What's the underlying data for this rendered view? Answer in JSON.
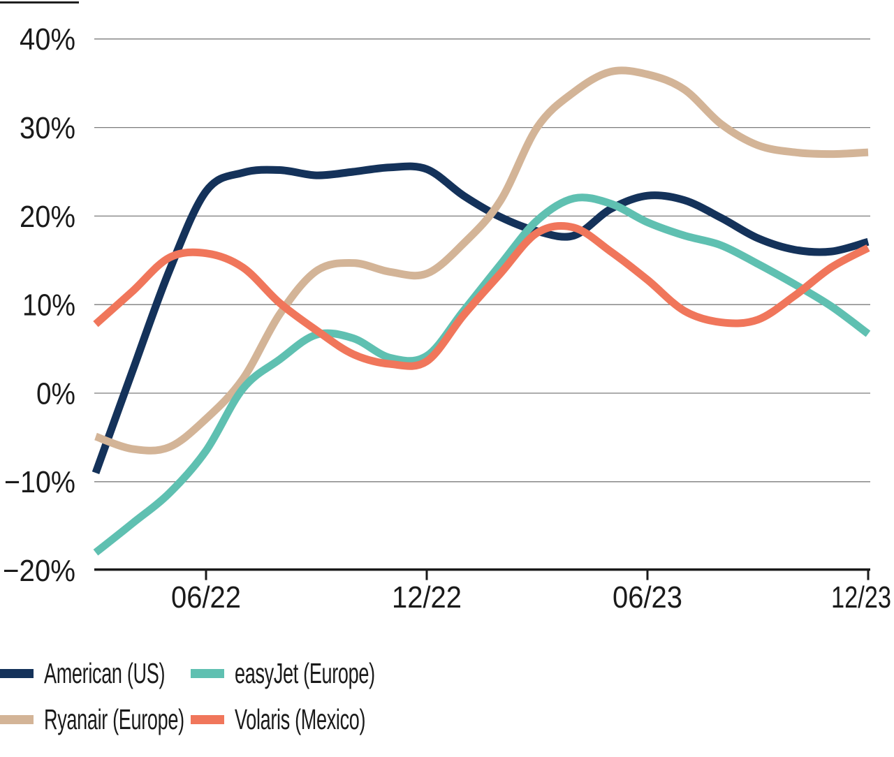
{
  "chart_data": {
    "type": "line",
    "title": "",
    "xlabel": "",
    "ylabel": "",
    "x": [
      "03/22",
      "04/22",
      "05/22",
      "06/22",
      "07/22",
      "08/22",
      "09/22",
      "10/22",
      "11/22",
      "12/22",
      "01/23",
      "02/23",
      "03/23",
      "04/23",
      "05/23",
      "06/23",
      "07/23",
      "08/23",
      "09/23",
      "10/23",
      "11/23",
      "12/23"
    ],
    "x_tick_labels": [
      "06/22",
      "12/22",
      "06/23",
      "12/23"
    ],
    "x_tick_indices": [
      3,
      9,
      15,
      21
    ],
    "y_ticks": [
      40,
      30,
      20,
      10,
      0,
      -10,
      -20
    ],
    "y_tick_labels": [
      "40%",
      "30%",
      "20%",
      "10%",
      "0%",
      "−10%",
      "−20%"
    ],
    "ylim": [
      -20,
      40
    ],
    "grid": "horizontal",
    "grid_color": "#7C7C7C",
    "axis_color": "#1A1A1A",
    "text_color": "#1A1A1A",
    "legend_position": "bottom-left",
    "series": [
      {
        "id": "american",
        "name": "American (US)",
        "color": "#14325A",
        "values": [
          -9.0,
          2.5,
          13.8,
          22.8,
          24.9,
          25.2,
          24.6,
          25.0,
          25.5,
          25.3,
          22.3,
          19.9,
          18.3,
          17.8,
          20.8,
          22.3,
          21.8,
          19.8,
          17.5,
          16.2,
          16.0,
          17.1
        ]
      },
      {
        "id": "ryanair",
        "name": "Ryanair (Europe)",
        "color": "#D3B497",
        "values": [
          -4.9,
          -6.3,
          -6.1,
          -2.9,
          1.6,
          8.9,
          13.8,
          14.7,
          13.7,
          13.5,
          16.9,
          21.7,
          30.0,
          34.0,
          36.3,
          36.0,
          34.3,
          30.4,
          28.0,
          27.2,
          27.0,
          27.2
        ]
      },
      {
        "id": "easyjet",
        "name": "easyJet (Europe)",
        "color": "#5FC0B1",
        "values": [
          -18.0,
          -14.7,
          -11.3,
          -6.5,
          0.5,
          3.8,
          6.6,
          6.2,
          4.0,
          4.2,
          9.3,
          14.5,
          19.5,
          22.0,
          21.4,
          19.3,
          17.8,
          16.7,
          14.6,
          12.3,
          9.8,
          6.7
        ]
      },
      {
        "id": "volaris",
        "name": "Volaris (Mexico)",
        "color": "#F0765B",
        "values": [
          7.8,
          11.5,
          15.3,
          15.8,
          14.2,
          10.2,
          7.1,
          4.4,
          3.3,
          3.6,
          8.8,
          13.5,
          18.1,
          18.7,
          16.0,
          12.8,
          9.3,
          8.0,
          8.3,
          11.0,
          14.2,
          16.4
        ]
      }
    ]
  }
}
